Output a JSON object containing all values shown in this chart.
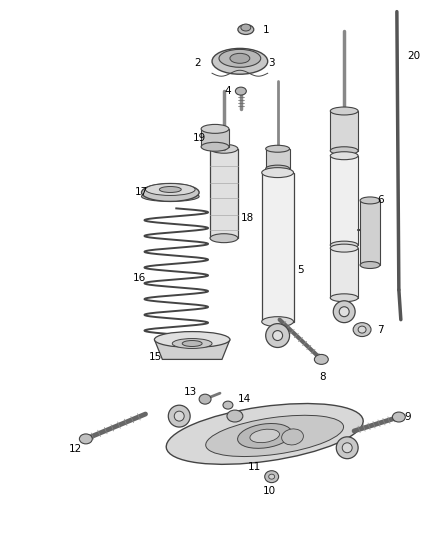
{
  "bg_color": "#ffffff",
  "line_color": "#444444",
  "label_color": "#000000",
  "fig_w": 4.38,
  "fig_h": 5.33,
  "dpi": 100
}
